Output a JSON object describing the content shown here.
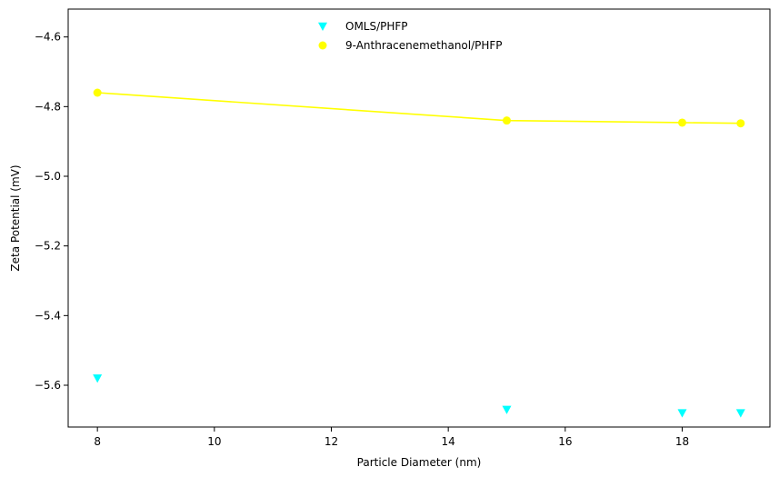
{
  "chart_data": {
    "type": "scatter",
    "xlabel": "Particle Diameter (nm)",
    "ylabel": "Zeta Potential (mV)",
    "xlim": [
      7.5,
      19.5
    ],
    "ylim": [
      -5.72,
      -4.52
    ],
    "xticks": [
      8,
      10,
      12,
      14,
      16,
      18
    ],
    "xtick_labels": [
      "8",
      "10",
      "12",
      "14",
      "16",
      "18"
    ],
    "yticks": [
      -4.6,
      -4.8,
      -5.0,
      -5.2,
      -5.4,
      -5.6
    ],
    "ytick_labels": [
      "−4.6",
      "−4.8",
      "−5.0",
      "−5.2",
      "−5.4",
      "−5.6"
    ],
    "grid": false,
    "legend_position": "top-center",
    "series": [
      {
        "name": "OMLS/PHFP",
        "marker": "triangle-down",
        "color": "#00ffff",
        "line": false,
        "x": [
          8,
          15,
          18,
          19
        ],
        "y": [
          -5.58,
          -5.67,
          -5.68,
          -5.68
        ]
      },
      {
        "name": "9-Anthracenemethanol/PHFP",
        "marker": "circle",
        "color": "#ffff00",
        "line": true,
        "x": [
          8,
          15,
          18,
          19
        ],
        "y": [
          -4.76,
          -4.84,
          -4.846,
          -4.848
        ]
      }
    ]
  }
}
